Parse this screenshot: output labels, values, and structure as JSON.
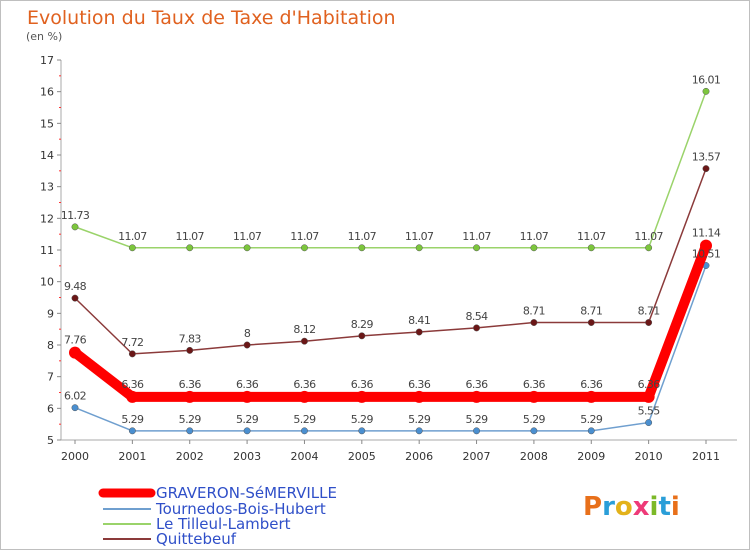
{
  "chart_data": {
    "type": "line",
    "title": "Evolution du Taux de Taxe d'Habitation",
    "subtitle": "(en %)",
    "x": [
      "2000",
      "2001",
      "2002",
      "2003",
      "2004",
      "2005",
      "2006",
      "2007",
      "2008",
      "2009",
      "2010",
      "2011"
    ],
    "ylim": [
      5,
      17
    ],
    "yticks": [
      5,
      6,
      7,
      8,
      9,
      10,
      11,
      12,
      13,
      14,
      15,
      16,
      17
    ],
    "grid": false,
    "legend_position": "bottom-left",
    "series": [
      {
        "name": "GRAVERON-SéMERVILLE",
        "color": "#ff0000",
        "emphasis": true,
        "values": [
          7.76,
          6.36,
          6.36,
          6.36,
          6.36,
          6.36,
          6.36,
          6.36,
          6.36,
          6.36,
          6.36,
          11.14
        ],
        "labels": [
          "7.76",
          "6.36",
          "6.36",
          "6.36",
          "6.36",
          "6.36",
          "6.36",
          "6.36",
          "6.36",
          "6.36",
          "6.36",
          "11.14"
        ]
      },
      {
        "name": "Tournedos-Bois-Hubert",
        "color": "#6f9fcf",
        "point_color": "#4a8fd0",
        "values": [
          6.02,
          5.29,
          5.29,
          5.29,
          5.29,
          5.29,
          5.29,
          5.29,
          5.29,
          5.29,
          5.55,
          10.51
        ],
        "labels": [
          "6.02",
          "5.29",
          "5.29",
          "5.29",
          "5.29",
          "5.29",
          "5.29",
          "5.29",
          "5.29",
          "5.29",
          "5.55",
          "10.51"
        ]
      },
      {
        "name": "Le Tilleul-Lambert",
        "color": "#9ad36a",
        "point_color": "#7cc63c",
        "values": [
          11.73,
          11.07,
          11.07,
          11.07,
          11.07,
          11.07,
          11.07,
          11.07,
          11.07,
          11.07,
          11.07,
          16.01
        ],
        "labels": [
          "11.73",
          "11.07",
          "11.07",
          "11.07",
          "11.07",
          "11.07",
          "11.07",
          "11.07",
          "11.07",
          "11.07",
          "11.07",
          "16.01"
        ]
      },
      {
        "name": "Quittebeuf",
        "color": "#8b3a3a",
        "point_color": "#6b1717",
        "values": [
          9.48,
          7.72,
          7.83,
          8,
          8.12,
          8.29,
          8.41,
          8.54,
          8.71,
          8.71,
          8.71,
          13.57
        ],
        "labels": [
          "9.48",
          "7.72",
          "7.83",
          "8",
          "8.12",
          "8.29",
          "8.41",
          "8.54",
          "8.71",
          "8.71",
          "8.71",
          "13.57"
        ]
      }
    ]
  },
  "logo": {
    "text": "Prox iti",
    "letters": [
      "P",
      "r",
      "o",
      "x",
      "i",
      "t",
      "i"
    ],
    "colors": [
      "#e8701a",
      "#2a9ed8",
      "#e3b21a",
      "#ee3a78",
      "#7cb928",
      "#2a9ed8",
      "#e8701a"
    ]
  }
}
